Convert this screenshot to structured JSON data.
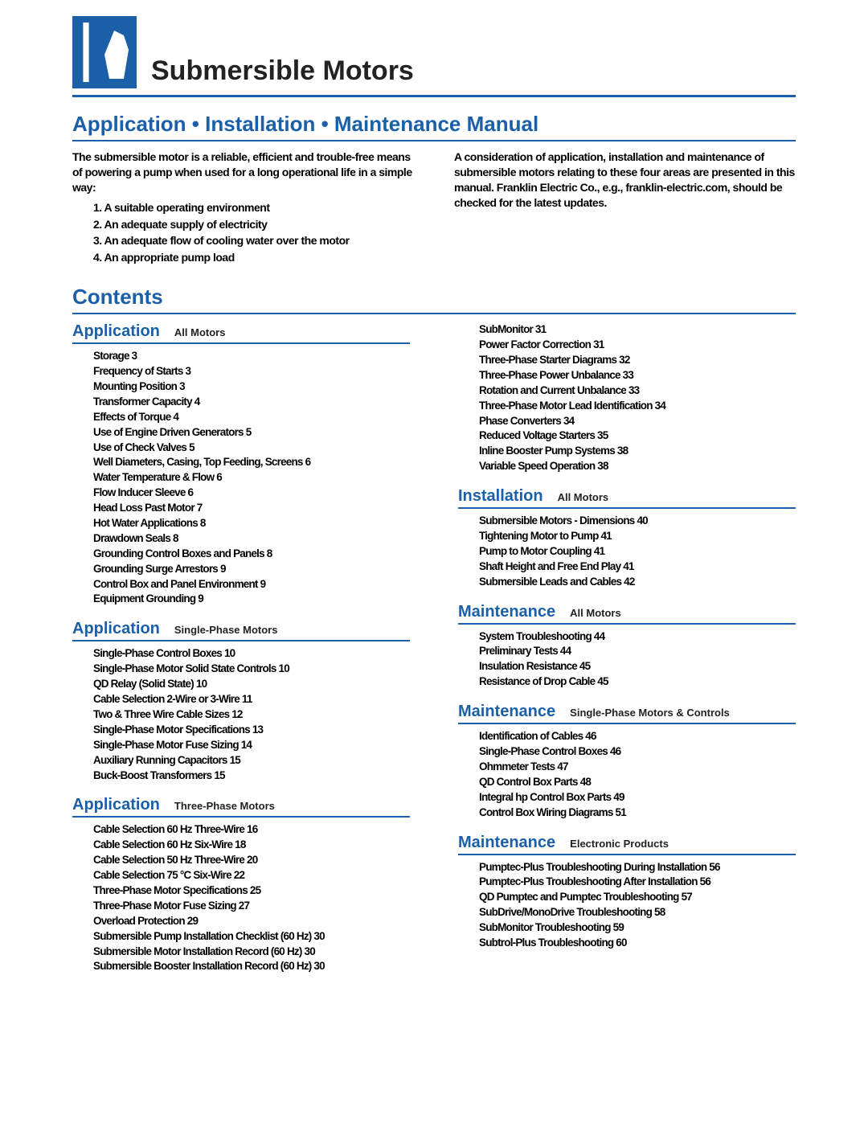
{
  "header": {
    "title": "Submersible Motors"
  },
  "subtitle": "Application • Installation • Maintenance Manual",
  "intro": {
    "left_lead": "The submersible motor is a reliable, efficient and trouble-free means of powering a pump when used for a long operational life in a simple way:",
    "bullets": [
      "1. A suitable operating environment",
      "2. An adequate supply of electricity",
      "3. An adequate flow of cooling water over the motor",
      "4. An appropriate pump load"
    ],
    "right": "A consideration of application, installation and maintenance of submersible motors relating to these four areas are presented in this manual. Franklin Electric Co., e.g., franklin-electric.com, should be checked for the latest updates."
  },
  "contents_label": "Contents",
  "sections": [
    {
      "col": 0,
      "main": "Application",
      "sub": "All Motors",
      "items": [
        "Storage 3",
        "Frequency of Starts 3",
        "Mounting Position 3",
        "Transformer Capacity 4",
        "Effects of Torque 4",
        "Use of Engine Driven Generators 5",
        "Use of Check Valves 5",
        "Well Diameters, Casing, Top Feeding, Screens 6",
        "Water Temperature & Flow 6",
        "Flow Inducer Sleeve 6",
        "Head Loss Past Motor 7",
        "Hot Water Applications 8",
        "Drawdown Seals 8",
        "Grounding Control Boxes and Panels 8",
        "Grounding Surge Arrestors 9",
        "Control Box and Panel Environment 9",
        "Equipment Grounding 9"
      ]
    },
    {
      "col": 0,
      "main": "Application",
      "sub": "Single-Phase Motors",
      "items": [
        "Single-Phase Control Boxes 10",
        "Single-Phase Motor Solid State Controls 10",
        "QD Relay (Solid State) 10",
        "Cable Selection 2-Wire or 3-Wire 11",
        "Two & Three Wire Cable Sizes 12",
        "Single-Phase Motor Specifications 13",
        "Single-Phase Motor Fuse Sizing 14",
        "Auxiliary Running Capacitors 15",
        "Buck-Boost Transformers 15"
      ]
    },
    {
      "col": 0,
      "main": "Application",
      "sub": "Three-Phase Motors",
      "items": [
        "Cable Selection 60 Hz Three-Wire 16",
        "Cable Selection 60 Hz Six-Wire 18",
        "Cable Selection 50 Hz Three-Wire 20",
        "Cable Selection 75 °C Six-Wire 22",
        "Three-Phase Motor Specifications 25",
        "Three-Phase Motor Fuse Sizing 27",
        "Overload Protection 29",
        "Submersible Pump Installation Checklist (60 Hz) 30",
        "Submersible Motor Installation Record (60 Hz) 30",
        "Submersible Booster Installation Record (60 Hz) 30"
      ]
    },
    {
      "col": 1,
      "continuation": true,
      "items": [
        "SubMonitor 31",
        "Power Factor Correction 31",
        "Three-Phase Starter Diagrams 32",
        "Three-Phase Power Unbalance 33",
        "Rotation and Current Unbalance 33",
        "Three-Phase Motor Lead Identification 34",
        "Phase Converters 34",
        "Reduced Voltage Starters 35",
        "Inline Booster Pump Systems 38",
        "Variable Speed Operation 38"
      ]
    },
    {
      "col": 1,
      "main": "Installation",
      "sub": "All Motors",
      "items": [
        "Submersible Motors - Dimensions 40",
        "Tightening Motor to Pump 41",
        "Pump to Motor Coupling 41",
        "Shaft Height and Free End Play 41",
        "Submersible Leads and Cables 42"
      ]
    },
    {
      "col": 1,
      "main": "Maintenance",
      "sub": "All Motors",
      "items": [
        "System Troubleshooting 44",
        "Preliminary Tests 44",
        "Insulation Resistance 45",
        "Resistance of Drop Cable 45"
      ]
    },
    {
      "col": 1,
      "main": "Maintenance",
      "sub": "Single-Phase Motors & Controls",
      "items": [
        "Identification of Cables 46",
        "Single-Phase Control Boxes 46",
        "Ohmmeter Tests 47",
        "QD Control Box Parts 48",
        "Integral hp Control Box Parts 49",
        "Control Box Wiring Diagrams 51"
      ]
    },
    {
      "col": 1,
      "main": "Maintenance",
      "sub": "Electronic Products",
      "items": [
        "Pumptec-Plus Troubleshooting During Installation 56",
        "Pumptec-Plus Troubleshooting After Installation 56",
        "QD Pumptec and Pumptec Troubleshooting 57",
        "SubDrive/MonoDrive Troubleshooting 58",
        "SubMonitor Troubleshooting 59",
        "Subtrol-Plus Troubleshooting 60"
      ]
    }
  ]
}
